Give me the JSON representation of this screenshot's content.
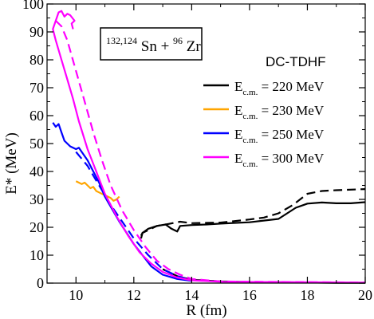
{
  "chart_data": {
    "type": "line",
    "xlabel": "R (fm)",
    "ylabel": "E* (MeV)",
    "xlim": [
      9,
      20
    ],
    "ylim": [
      0,
      100
    ],
    "xticks": [
      10,
      12,
      14,
      16,
      18,
      20
    ],
    "yticks": [
      0,
      10,
      20,
      30,
      40,
      50,
      60,
      70,
      80,
      90,
      100
    ],
    "method_label": "DC-TDHF",
    "reaction_label": {
      "sup1": "132,124",
      "el1": "Sn",
      "plus": " + ",
      "sup2": "96",
      "el2": "Zr"
    },
    "legend_position": "upper-right",
    "series": [
      {
        "key": "e220",
        "name": "E_c.m. = 220 MeV",
        "legend_main": "E",
        "legend_sub": "c.m.",
        "legend_rest": " = 220 MeV",
        "color": "#000000",
        "solid": [
          [
            12.25,
            16
          ],
          [
            12.3,
            18
          ],
          [
            12.5,
            19.5
          ],
          [
            12.8,
            20.5
          ],
          [
            13.1,
            21
          ],
          [
            13.3,
            19.5
          ],
          [
            13.5,
            18.5
          ],
          [
            13.6,
            20.5
          ],
          [
            14,
            20.8
          ],
          [
            14.5,
            21
          ],
          [
            15,
            21.3
          ],
          [
            16,
            21.8
          ],
          [
            17,
            23
          ],
          [
            17.3,
            25
          ],
          [
            17.6,
            27
          ],
          [
            18,
            28.5
          ],
          [
            18.5,
            28.9
          ],
          [
            19,
            28.6
          ],
          [
            19.5,
            28.6
          ],
          [
            20,
            29
          ]
        ],
        "dashed": [
          [
            12.25,
            17
          ],
          [
            12.3,
            18
          ],
          [
            12.5,
            19
          ],
          [
            12.8,
            20.5
          ],
          [
            13.2,
            21.2
          ],
          [
            13.6,
            22
          ],
          [
            14,
            21.5
          ],
          [
            15,
            21.7
          ],
          [
            16,
            22.8
          ],
          [
            16.5,
            23.5
          ],
          [
            17,
            25
          ],
          [
            17.5,
            28
          ],
          [
            18,
            32
          ],
          [
            18.5,
            33
          ],
          [
            19,
            33.3
          ],
          [
            20,
            33.7
          ]
        ]
      },
      {
        "key": "e230",
        "name": "E_c.m. = 230 MeV",
        "legend_main": "E",
        "legend_sub": "c.m.",
        "legend_rest": " = 230 MeV",
        "color": "#FFA500",
        "solid": [
          [
            10,
            36.5
          ],
          [
            10.1,
            36
          ],
          [
            10.2,
            35.5
          ],
          [
            10.3,
            36
          ],
          [
            10.4,
            35
          ],
          [
            10.5,
            34
          ],
          [
            10.6,
            34.5
          ],
          [
            10.7,
            33
          ],
          [
            10.8,
            32.5
          ],
          [
            11,
            31.5
          ],
          [
            11.2,
            30.5
          ],
          [
            11.3,
            29.5
          ],
          [
            11.4,
            30
          ],
          [
            11.5,
            31
          ]
        ],
        "dashed": []
      },
      {
        "key": "e250",
        "name": "E_c.m. = 250 MeV",
        "legend_main": "E",
        "legend_sub": "c.m.",
        "legend_rest": " = 250 MeV",
        "color": "#0000FF",
        "solid": [
          [
            9.2,
            57.5
          ],
          [
            9.3,
            56
          ],
          [
            9.4,
            57
          ],
          [
            9.5,
            54
          ],
          [
            9.6,
            51
          ],
          [
            9.7,
            50
          ],
          [
            9.8,
            49
          ],
          [
            10,
            48
          ],
          [
            10.1,
            48.5
          ],
          [
            10.2,
            47
          ],
          [
            10.4,
            44
          ],
          [
            10.6,
            40
          ],
          [
            10.8,
            36
          ],
          [
            11,
            31
          ],
          [
            11.5,
            22
          ],
          [
            12,
            14
          ],
          [
            12.3,
            10
          ],
          [
            12.6,
            6
          ],
          [
            13,
            3
          ],
          [
            13.5,
            1.5
          ],
          [
            14,
            0.8
          ]
        ],
        "dashed": [
          [
            10,
            47
          ],
          [
            10.4,
            42
          ],
          [
            10.8,
            35
          ],
          [
            11.2,
            28
          ],
          [
            11.6,
            22
          ],
          [
            12,
            16
          ],
          [
            12.5,
            10
          ],
          [
            13,
            5
          ],
          [
            13.5,
            2.5
          ],
          [
            14,
            1
          ]
        ]
      },
      {
        "key": "e300",
        "name": "E_c.m. = 300 MeV",
        "legend_main": "E",
        "legend_sub": "c.m.",
        "legend_rest": " = 300 MeV",
        "color": "#FF00FF",
        "solid": [
          [
            9.9,
            91
          ],
          [
            9.85,
            93
          ],
          [
            9.95,
            94
          ],
          [
            9.8,
            96
          ],
          [
            9.7,
            96.5
          ],
          [
            9.6,
            95.5
          ],
          [
            9.5,
            97.5
          ],
          [
            9.4,
            97
          ],
          [
            9.3,
            94
          ],
          [
            9.2,
            91
          ],
          [
            9.3,
            87
          ],
          [
            9.5,
            80
          ],
          [
            9.7,
            73
          ],
          [
            9.9,
            66
          ],
          [
            10.1,
            58
          ],
          [
            10.4,
            48
          ],
          [
            10.7,
            40
          ],
          [
            11,
            32
          ],
          [
            11.4,
            24
          ],
          [
            11.8,
            17
          ],
          [
            12.2,
            11
          ],
          [
            12.6,
            7
          ],
          [
            13,
            4
          ],
          [
            13.5,
            2
          ],
          [
            14,
            1
          ],
          [
            15,
            0.5
          ],
          [
            20,
            0.2
          ]
        ],
        "dashed": [
          [
            9.3,
            94
          ],
          [
            9.5,
            92
          ],
          [
            9.7,
            87
          ],
          [
            10,
            76
          ],
          [
            10.3,
            65
          ],
          [
            10.6,
            54
          ],
          [
            10.9,
            44
          ],
          [
            11.2,
            35
          ],
          [
            11.6,
            26
          ],
          [
            12,
            19
          ],
          [
            12.4,
            13
          ],
          [
            12.8,
            8
          ],
          [
            13.2,
            5
          ],
          [
            13.6,
            3
          ],
          [
            14,
            1.5
          ],
          [
            15,
            0.6
          ],
          [
            20,
            0.2
          ]
        ]
      }
    ],
    "black_tail": [
      [
        13,
        5
      ],
      [
        13.5,
        2.5
      ],
      [
        14,
        1.2
      ],
      [
        15,
        0.6
      ],
      [
        16,
        0.4
      ],
      [
        17,
        0.3
      ],
      [
        18,
        0.2
      ],
      [
        19,
        0.1
      ],
      [
        20,
        0.1
      ]
    ]
  }
}
